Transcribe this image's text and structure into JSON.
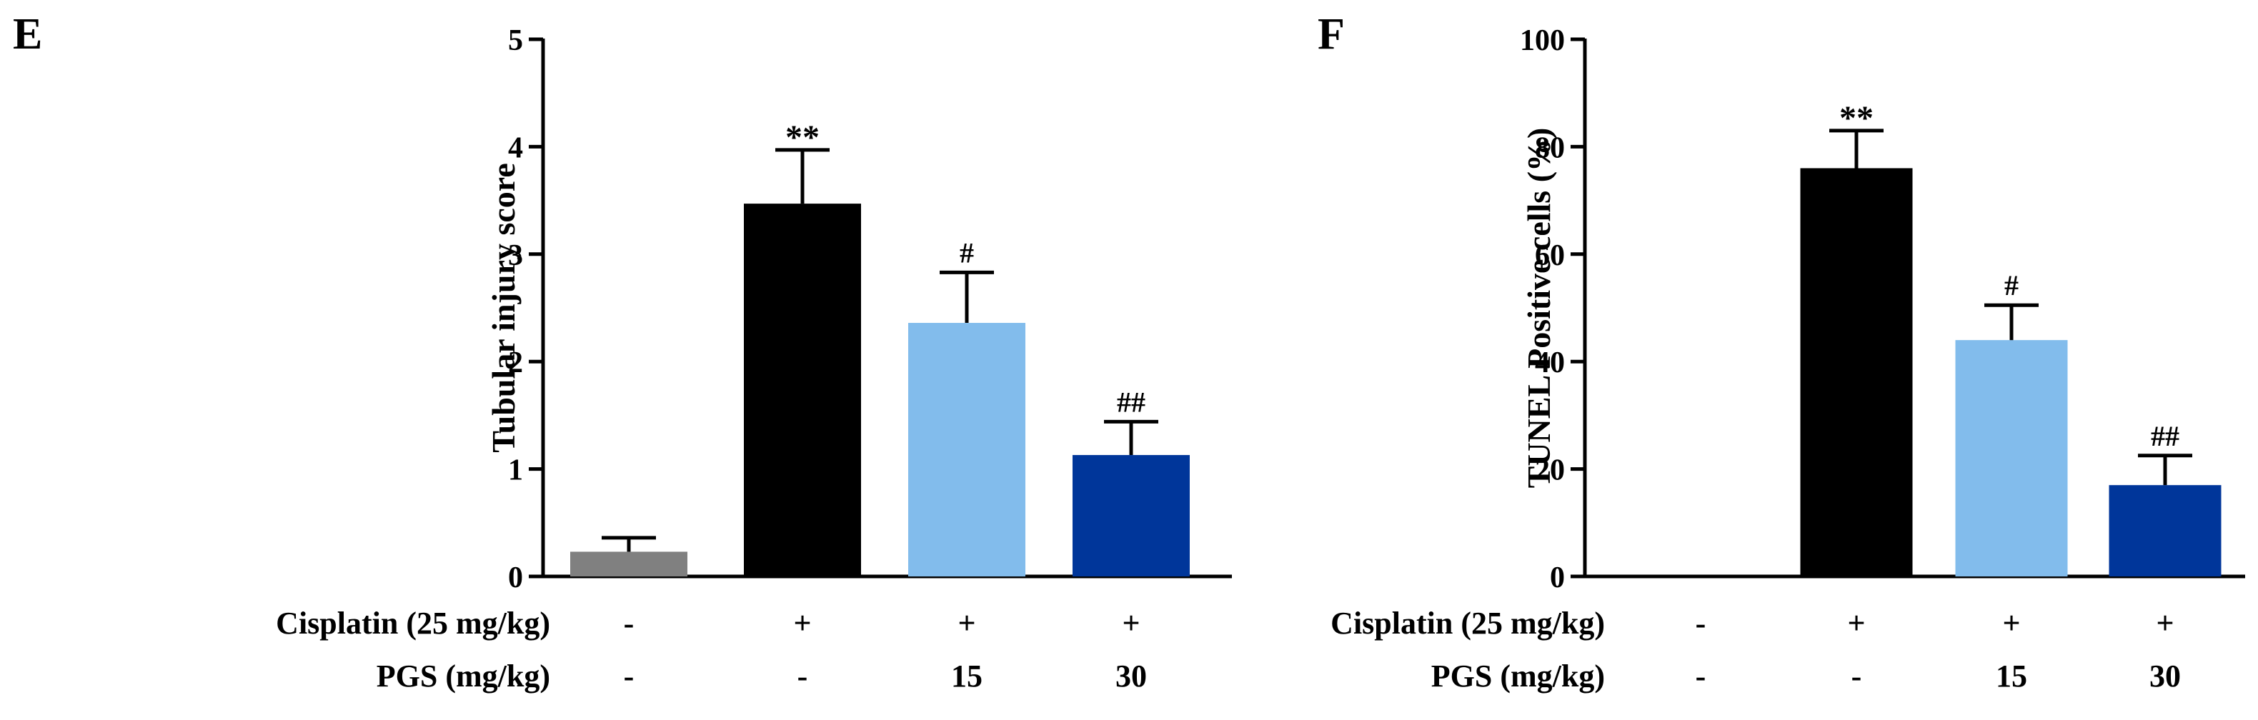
{
  "chart_data": [
    {
      "panel_label": "E",
      "type": "bar",
      "ylabel": "Tubular injury score",
      "ylim": [
        0,
        5
      ],
      "yticks": [
        "0",
        "1",
        "2",
        "3",
        "4",
        "5"
      ],
      "values": [
        0.23,
        3.47,
        2.36,
        1.13
      ],
      "errors": [
        0.13,
        0.5,
        0.47,
        0.31
      ],
      "annotations": [
        "",
        "**",
        "#",
        "##"
      ],
      "colors": [
        "#808080",
        "#000000",
        "#82bcec",
        "#00369a"
      ],
      "row1": {
        "label": "Cisplatin (25 mg/kg)",
        "values": [
          "-",
          "+",
          "+",
          "+"
        ]
      },
      "row2": {
        "label": "PGS (mg/kg)",
        "values": [
          "-",
          "-",
          "15",
          "30"
        ]
      }
    },
    {
      "panel_label": "F",
      "type": "bar",
      "ylabel": "TUNEL Positive cells (%)",
      "ylim": [
        0,
        100
      ],
      "yticks": [
        "0",
        "20",
        "40",
        "60",
        "80",
        "100"
      ],
      "values": [
        0,
        76,
        44,
        17
      ],
      "errors": [
        0,
        7,
        6.5,
        5.5
      ],
      "annotations": [
        "",
        "**",
        "#",
        "##"
      ],
      "colors": [
        "#808080",
        "#000000",
        "#82bcec",
        "#00369a"
      ],
      "row1": {
        "label": "Cisplatin (25 mg/kg)",
        "values": [
          "-",
          "+",
          "+",
          "+"
        ]
      },
      "row2": {
        "label": "PGS (mg/kg)",
        "values": [
          "-",
          "-",
          "15",
          "30"
        ]
      }
    }
  ]
}
